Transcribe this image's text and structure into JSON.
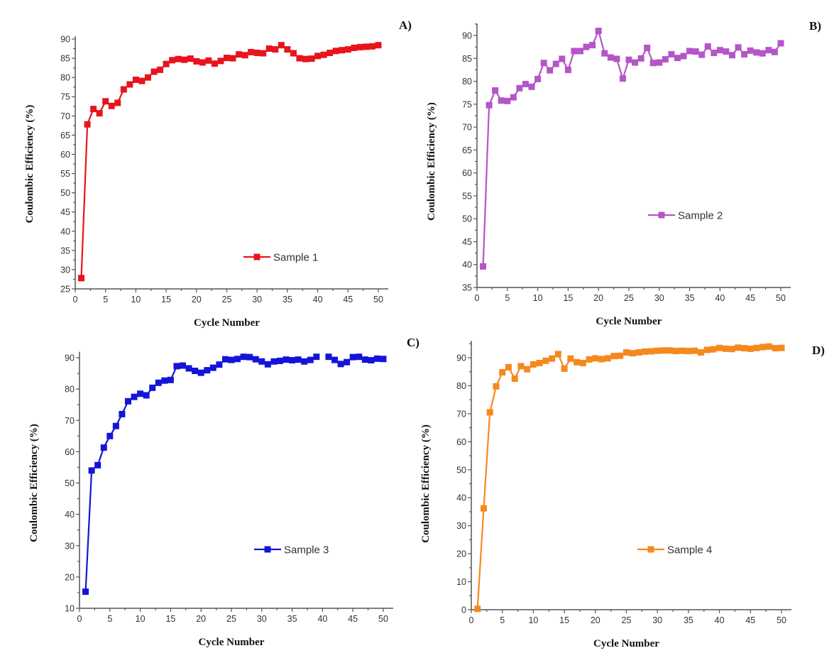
{
  "chart_data": [
    {
      "type": "line",
      "panel_label": "A)",
      "title": "",
      "xlabel": "Cycle Number",
      "ylabel": "Coulombic Efficiency (%)",
      "xlim": [
        0,
        51
      ],
      "ylim": [
        25,
        90
      ],
      "xticks": [
        0,
        5,
        10,
        15,
        20,
        25,
        30,
        35,
        40,
        45,
        50
      ],
      "yticks": [
        25,
        30,
        35,
        40,
        45,
        50,
        55,
        60,
        65,
        70,
        75,
        80,
        85,
        90
      ],
      "grid": false,
      "legend_position": "bottom-right",
      "color": "#e8141c",
      "series": [
        {
          "name": "Sample 1",
          "x": [
            1,
            2,
            3,
            4,
            5,
            6,
            7,
            8,
            9,
            10,
            11,
            12,
            13,
            14,
            15,
            16,
            17,
            18,
            19,
            20,
            21,
            22,
            23,
            24,
            25,
            26,
            27,
            28,
            29,
            30,
            31,
            32,
            33,
            34,
            35,
            36,
            37,
            38,
            39,
            40,
            41,
            42,
            43,
            44,
            45,
            46,
            47,
            48,
            49,
            50
          ],
          "values": [
            27.8,
            67.8,
            71.8,
            70.7,
            73.8,
            72.6,
            73.4,
            76.9,
            78.2,
            79.4,
            79.1,
            80.0,
            81.5,
            82.0,
            83.5,
            84.5,
            84.8,
            84.6,
            84.9,
            84.2,
            83.9,
            84.4,
            83.6,
            84.3,
            85.1,
            85.0,
            86.0,
            85.8,
            86.6,
            86.4,
            86.3,
            87.5,
            87.3,
            88.4,
            87.3,
            86.3,
            85.0,
            84.8,
            84.9,
            85.6,
            85.9,
            86.4,
            86.9,
            87.1,
            87.3,
            87.7,
            87.9,
            88.0,
            88.1,
            88.4
          ]
        }
      ]
    },
    {
      "type": "line",
      "panel_label": "B)",
      "title": "",
      "xlabel": "Cycle Number",
      "ylabel": "Coulombic Efficiency (%)",
      "xlim": [
        0,
        51
      ],
      "ylim": [
        35,
        92
      ],
      "xticks": [
        0,
        5,
        10,
        15,
        20,
        25,
        30,
        35,
        40,
        45,
        50
      ],
      "yticks": [
        35,
        40,
        45,
        50,
        55,
        60,
        65,
        70,
        75,
        80,
        85,
        90
      ],
      "grid": false,
      "legend_position": "center-right",
      "color": "#b455c8",
      "series": [
        {
          "name": "Sample 2",
          "x": [
            1,
            2,
            3,
            4,
            5,
            6,
            7,
            8,
            9,
            10,
            11,
            12,
            13,
            14,
            15,
            16,
            17,
            18,
            19,
            20,
            21,
            22,
            23,
            24,
            25,
            26,
            27,
            28,
            29,
            30,
            31,
            32,
            33,
            34,
            35,
            36,
            37,
            38,
            39,
            40,
            41,
            42,
            43,
            44,
            45,
            46,
            47,
            48,
            49,
            50
          ],
          "values": [
            39.6,
            74.8,
            78.0,
            75.8,
            75.7,
            76.5,
            78.5,
            79.4,
            78.8,
            80.5,
            84.0,
            82.4,
            83.8,
            84.9,
            82.5,
            86.6,
            86.6,
            87.5,
            87.9,
            91.0,
            86.1,
            85.2,
            84.9,
            80.6,
            84.7,
            84.1,
            85.0,
            87.3,
            84.0,
            84.1,
            84.8,
            85.9,
            85.1,
            85.5,
            86.6,
            86.5,
            85.8,
            87.6,
            86.2,
            86.8,
            86.5,
            85.7,
            87.4,
            85.9,
            86.7,
            86.3,
            86.1,
            86.8,
            86.4,
            88.3
          ]
        }
      ]
    },
    {
      "type": "line",
      "panel_label": "C)",
      "title": "",
      "xlabel": "Cycle Number",
      "ylabel": "Coulombic Efficiency (%)",
      "xlim": [
        0,
        51
      ],
      "ylim": [
        10,
        91
      ],
      "xticks": [
        0,
        5,
        10,
        15,
        20,
        25,
        30,
        35,
        40,
        45,
        50
      ],
      "yticks": [
        10,
        20,
        30,
        40,
        50,
        60,
        70,
        80,
        90
      ],
      "grid": false,
      "legend_position": "bottom-right",
      "color": "#1414d8",
      "series": [
        {
          "name": "Sample 3",
          "x": [
            1,
            2,
            3,
            4,
            5,
            6,
            7,
            8,
            9,
            10,
            11,
            12,
            13,
            14,
            15,
            16,
            17,
            18,
            19,
            20,
            21,
            22,
            23,
            24,
            25,
            26,
            27,
            28,
            29,
            30,
            31,
            32,
            33,
            34,
            35,
            36,
            37,
            38,
            39,
            40,
            41,
            42,
            43,
            44,
            45,
            46,
            47,
            48,
            49,
            50
          ],
          "values": [
            15.3,
            54.0,
            55.7,
            61.3,
            65.0,
            68.2,
            72.0,
            76.1,
            77.5,
            78.5,
            78.0,
            80.4,
            82.0,
            82.7,
            82.9,
            87.3,
            87.5,
            86.6,
            85.8,
            85.2,
            86.0,
            86.8,
            87.8,
            89.5,
            89.3,
            89.6,
            90.3,
            90.2,
            89.5,
            88.8,
            87.9,
            88.8,
            89.0,
            89.4,
            89.2,
            89.4,
            88.8,
            89.3,
            90.3,
            null,
            90.3,
            89.3,
            88.0,
            88.6,
            90.2,
            90.3,
            89.4,
            89.2,
            89.7,
            89.6
          ]
        }
      ]
    },
    {
      "type": "line",
      "panel_label": "D)",
      "title": "",
      "xlabel": "Cycle Number",
      "ylabel": "Coulombic Efficiency (%)",
      "xlim": [
        0,
        51
      ],
      "ylim": [
        0,
        95
      ],
      "xticks": [
        0,
        5,
        10,
        15,
        20,
        25,
        30,
        35,
        40,
        45,
        50
      ],
      "yticks": [
        0,
        10,
        20,
        30,
        40,
        50,
        60,
        70,
        80,
        90
      ],
      "grid": false,
      "legend_position": "bottom-right",
      "color": "#f5891e",
      "series": [
        {
          "name": "Sample 4",
          "x": [
            1,
            2,
            3,
            4,
            5,
            6,
            7,
            8,
            9,
            10,
            11,
            12,
            13,
            14,
            15,
            16,
            17,
            18,
            19,
            20,
            21,
            22,
            23,
            24,
            25,
            26,
            27,
            28,
            29,
            30,
            31,
            32,
            33,
            34,
            35,
            36,
            37,
            38,
            39,
            40,
            41,
            42,
            43,
            44,
            45,
            46,
            47,
            48,
            49,
            50
          ],
          "values": [
            0.3,
            36.2,
            70.5,
            79.8,
            84.8,
            86.6,
            82.5,
            87.0,
            85.9,
            87.6,
            88.1,
            88.9,
            89.7,
            91.3,
            86.1,
            89.7,
            88.4,
            88.1,
            89.4,
            89.8,
            89.5,
            89.8,
            90.6,
            90.7,
            91.9,
            91.6,
            91.9,
            92.2,
            92.3,
            92.5,
            92.6,
            92.6,
            92.4,
            92.5,
            92.4,
            92.5,
            91.9,
            92.8,
            93.0,
            93.5,
            93.2,
            93.1,
            93.6,
            93.4,
            93.2,
            93.5,
            93.8,
            94.0,
            93.4,
            93.5
          ]
        }
      ]
    }
  ]
}
